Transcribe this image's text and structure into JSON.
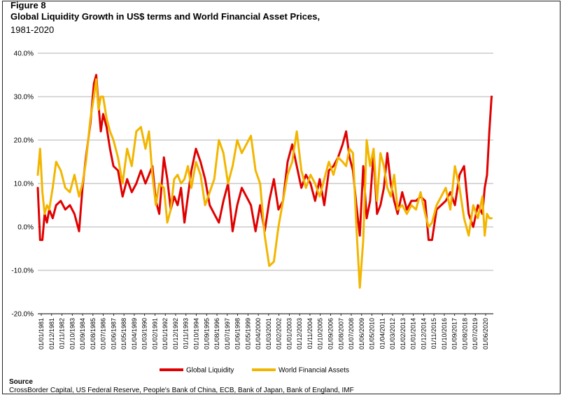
{
  "figure_label": "Figure 8",
  "title": "Global Liquidity Growth in US$ terms and World Financial Asset Prices,",
  "subtitle": "1981-2020",
  "source": {
    "label": "Source",
    "text": "CrossBorder Capital, US Federal Reserve, People's Bank of China, ECB, Bank of Japan, Bank of England, IMF"
  },
  "colors": {
    "global_liquidity": "#e00000",
    "world_financial_assets": "#f2b600"
  },
  "chart_data": {
    "type": "line",
    "ylim": [
      -20,
      40
    ],
    "yticks": [
      40,
      30,
      20,
      10,
      0,
      -10,
      -20
    ],
    "ytick_labels": [
      "40.0%",
      "30.0%",
      "20.0%",
      "10.0%",
      "0.0%",
      "-10.0%",
      "-20.0%"
    ],
    "xlim": [
      1981.0,
      2020.75
    ],
    "xtick_labels": [
      "01/01/1981",
      "01/12/1981",
      "01/11/1982",
      "01/10/1983",
      "01/09/1984",
      "01/08/1985",
      "01/07/1986",
      "01/06/1987",
      "01/05/1988",
      "01/04/1989",
      "01/03/1990",
      "01/02/1991",
      "01/01/1992",
      "01/12/1992",
      "01/11/1993",
      "01/10/1994",
      "01/09/1995",
      "01/08/1996",
      "01/07/1997",
      "01/06/1998",
      "01/05/1999",
      "01/04/2000",
      "01/03/2001",
      "01/02/2002",
      "01/01/2003",
      "01/12/2003",
      "01/11/2004",
      "01/10/2005",
      "01/09/2006",
      "01/08/2007",
      "01/07/2008",
      "01/06/2009",
      "01/05/2010",
      "01/04/2011",
      "01/03/2012",
      "01/02/2013",
      "01/01/2014",
      "01/12/2014",
      "01/11/2015",
      "01/10/2016",
      "01/09/2017",
      "01/08/2018",
      "01/07/2019",
      "01/06/2020"
    ],
    "grid": true,
    "legend_position": "bottom",
    "series": [
      {
        "name": "Global Liquidity",
        "x": [
          1981.0,
          1981.2,
          1981.4,
          1981.6,
          1981.8,
          1982.0,
          1982.3,
          1982.6,
          1983.0,
          1983.4,
          1983.8,
          1984.2,
          1984.6,
          1984.9,
          1985.2,
          1985.6,
          1985.9,
          1986.1,
          1986.3,
          1986.5,
          1986.7,
          1987.0,
          1987.3,
          1987.6,
          1988.0,
          1988.4,
          1988.8,
          1989.2,
          1989.6,
          1990.0,
          1990.4,
          1990.7,
          1991.0,
          1991.3,
          1991.6,
          1992.0,
          1992.3,
          1992.6,
          1992.9,
          1993.2,
          1993.5,
          1993.8,
          1994.1,
          1994.4,
          1994.8,
          1995.2,
          1995.6,
          1996.0,
          1996.4,
          1996.8,
          1997.2,
          1997.6,
          1998.0,
          1998.4,
          1998.8,
          1999.2,
          1999.6,
          2000.0,
          2000.4,
          2000.8,
          2001.2,
          2001.6,
          2002.0,
          2002.4,
          2002.8,
          2003.2,
          2003.6,
          2004.0,
          2004.4,
          2004.8,
          2005.2,
          2005.6,
          2006.0,
          2006.4,
          2006.8,
          2007.2,
          2007.6,
          2007.9,
          2008.2,
          2008.5,
          2008.8,
          2009.1,
          2009.4,
          2009.7,
          2010.0,
          2010.3,
          2010.6,
          2010.9,
          2011.2,
          2011.5,
          2011.8,
          2012.1,
          2012.4,
          2012.8,
          2013.2,
          2013.6,
          2014.0,
          2014.4,
          2014.8,
          2015.1,
          2015.4,
          2015.8,
          2016.2,
          2016.6,
          2017.0,
          2017.4,
          2017.8,
          2018.2,
          2018.6,
          2019.0,
          2019.4,
          2019.8,
          2020.0,
          2020.2,
          2020.4,
          2020.6
        ],
        "values": [
          9,
          -3,
          -3,
          3,
          1,
          4,
          2,
          5,
          6,
          4,
          5,
          3,
          -1,
          9,
          16,
          24,
          33,
          35,
          28,
          22,
          26,
          23,
          18,
          14,
          13,
          7,
          11,
          8,
          10,
          13,
          10,
          12,
          14,
          6,
          3,
          16,
          11,
          4,
          7,
          5,
          9,
          1,
          7,
          13,
          18,
          15,
          11,
          5,
          3,
          1,
          6,
          10,
          -1,
          5,
          9,
          7,
          5,
          -1,
          5,
          -1,
          6,
          11,
          4,
          6,
          15,
          19,
          14,
          9,
          12,
          10,
          6,
          11,
          5,
          13,
          14,
          16,
          19,
          22,
          16,
          13,
          5,
          -2,
          14,
          2,
          6,
          17,
          3,
          5,
          9,
          17,
          10,
          6,
          3,
          8,
          4,
          6,
          6,
          7,
          6,
          -3,
          -3,
          4,
          5,
          6,
          8,
          5,
          12,
          14,
          3,
          0,
          5,
          3,
          9,
          12,
          22,
          30
        ]
      },
      {
        "name": "World Financial Assets",
        "x": [
          1981.0,
          1981.2,
          1981.4,
          1981.6,
          1981.8,
          1982.0,
          1982.3,
          1982.6,
          1983.0,
          1983.4,
          1983.8,
          1984.2,
          1984.6,
          1984.9,
          1985.2,
          1985.6,
          1985.9,
          1986.1,
          1986.3,
          1986.5,
          1986.7,
          1987.0,
          1987.3,
          1987.6,
          1988.0,
          1988.4,
          1988.8,
          1989.2,
          1989.6,
          1990.0,
          1990.4,
          1990.7,
          1991.0,
          1991.3,
          1991.6,
          1992.0,
          1992.3,
          1992.6,
          1992.9,
          1993.2,
          1993.5,
          1993.8,
          1994.1,
          1994.4,
          1994.8,
          1995.2,
          1995.6,
          1996.0,
          1996.4,
          1996.8,
          1997.2,
          1997.6,
          1998.0,
          1998.4,
          1998.8,
          1999.2,
          1999.6,
          2000.0,
          2000.4,
          2000.8,
          2001.2,
          2001.6,
          2002.0,
          2002.4,
          2002.8,
          2003.2,
          2003.6,
          2004.0,
          2004.4,
          2004.8,
          2005.2,
          2005.6,
          2006.0,
          2006.4,
          2006.8,
          2007.2,
          2007.6,
          2007.9,
          2008.2,
          2008.5,
          2008.8,
          2009.1,
          2009.4,
          2009.7,
          2010.0,
          2010.3,
          2010.6,
          2010.9,
          2011.2,
          2011.5,
          2011.8,
          2012.1,
          2012.4,
          2012.8,
          2013.2,
          2013.6,
          2014.0,
          2014.4,
          2014.8,
          2015.1,
          2015.4,
          2015.8,
          2016.2,
          2016.6,
          2017.0,
          2017.4,
          2017.8,
          2018.2,
          2018.6,
          2019.0,
          2019.4,
          2019.8,
          2020.0,
          2020.2,
          2020.4,
          2020.6
        ],
        "values": [
          12,
          18,
          8,
          3,
          5,
          4,
          9,
          15,
          13,
          9,
          8,
          12,
          7,
          10,
          15,
          25,
          30,
          34,
          27,
          30,
          30,
          25,
          22,
          20,
          16,
          10,
          18,
          14,
          22,
          23,
          18,
          22,
          12,
          5,
          10,
          9,
          1,
          4,
          11,
          12,
          10,
          11,
          14,
          9,
          15,
          12,
          5,
          8,
          11,
          20,
          17,
          10,
          14,
          20,
          17,
          19,
          21,
          13,
          10,
          -2,
          -9,
          -8,
          0,
          6,
          12,
          15,
          22,
          13,
          9,
          12,
          10,
          7,
          11,
          15,
          12,
          16,
          15,
          14,
          18,
          17,
          0,
          -14,
          -3,
          20,
          14,
          18,
          6,
          17,
          14,
          9,
          7,
          12,
          4,
          5,
          3,
          5,
          4,
          8,
          3,
          0,
          1,
          5,
          7,
          9,
          4,
          14,
          9,
          2,
          -2,
          5,
          2,
          7,
          -2,
          3,
          2,
          2
        ]
      }
    ]
  }
}
